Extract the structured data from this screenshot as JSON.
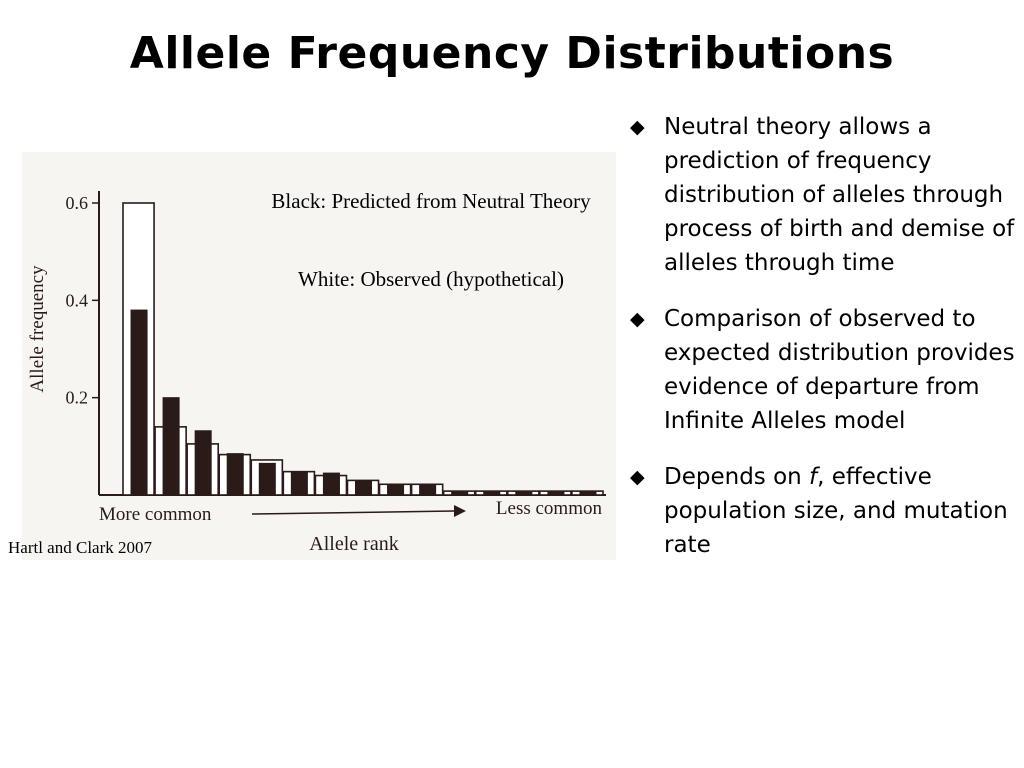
{
  "slide": {
    "title": "Allele Frequency Distributions",
    "legend": {
      "black": "Black: Predicted from Neutral Theory",
      "white": "White: Observed (hypothetical)"
    },
    "citation": "Hartl and Clark 2007",
    "bullet_icon": "diamond-bullet-icon",
    "bullets": [
      {
        "text": "Neutral theory allows a prediction of frequency distribution of alleles through process of birth and demise of alleles through time"
      },
      {
        "text": "Comparison of observed to expected distribution provides evidence of departure from Infinite Alleles model"
      },
      {
        "pre": "Depends on ",
        "emph": "f",
        "post": ", effective population size, and mutation rate"
      }
    ]
  },
  "chart_data": {
    "type": "bar",
    "xlabel": "Allele rank",
    "ylabel": "Allele frequency",
    "x_left_label": "More common",
    "x_right_label": "Less common",
    "ylim": [
      0,
      0.6
    ],
    "yticks": [
      0.2,
      0.4,
      0.6
    ],
    "ytick_labels": [
      "0.2",
      "0.4",
      "0.6"
    ],
    "grid": false,
    "series": [
      {
        "values": [
          0.6,
          0.14,
          0.105,
          0.083,
          0.072,
          0.048,
          0.04,
          0.03,
          0.022,
          0.022,
          0.008,
          0.008,
          0.008,
          0.008,
          0.008
        ],
        "color": "#ffffff"
      },
      {
        "values": [
          0.38,
          0.2,
          0.132,
          0.085,
          0.065,
          0.048,
          0.045,
          0.028,
          0.02,
          0.02,
          0.006,
          0.006,
          0.006,
          0.006,
          0.006
        ],
        "color": "#2a1a18"
      }
    ]
  }
}
